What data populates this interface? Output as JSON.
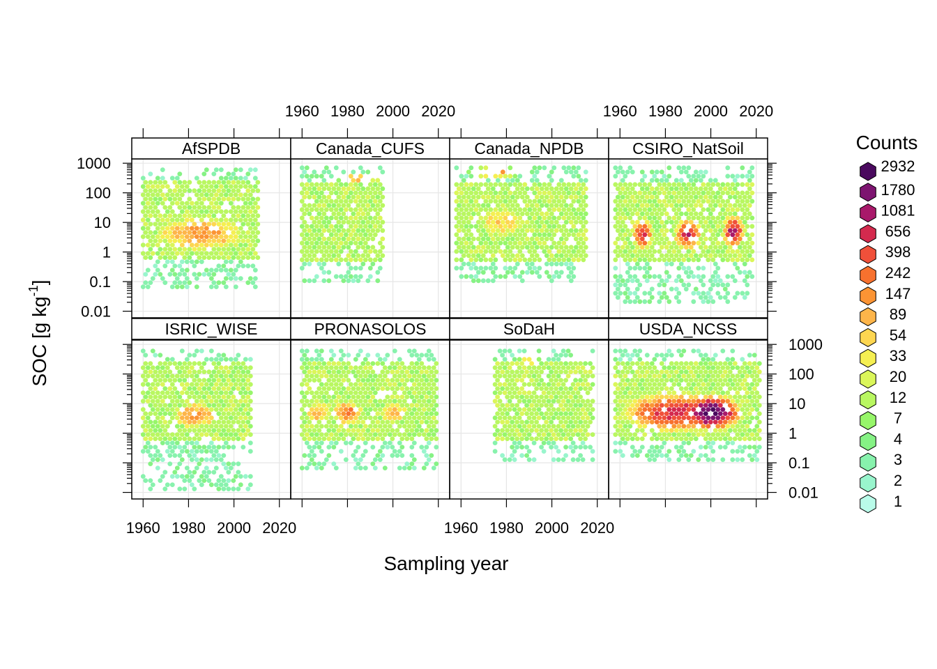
{
  "chart_data": {
    "type": "hexbin",
    "xlabel": "Sampling year",
    "ylabel": "SOC [g kg",
    "ylabel_superscript": "-1",
    "ylabel_close": "]",
    "x_ticks": [
      "1960",
      "1980",
      "2000",
      "2020"
    ],
    "x_range": [
      1955,
      2025
    ],
    "y_scale": "log10",
    "y_ticks": [
      "0.01",
      "0.1",
      "1",
      "10",
      "100",
      "1000"
    ],
    "y_range": [
      0.006,
      1400
    ],
    "legend": {
      "title": "Counts",
      "levels": [
        "2932",
        "1780",
        "1081",
        "656",
        "398",
        "242",
        "147",
        "89",
        "54",
        "33",
        "20",
        "12",
        "7",
        "4",
        "3",
        "2",
        "1"
      ],
      "colors": [
        "#4a0a5e",
        "#7d1470",
        "#a8196a",
        "#d42a4e",
        "#f0503a",
        "#f7712e",
        "#fb9434",
        "#fdb54a",
        "#fdd651",
        "#f5ef52",
        "#dbf65a",
        "#b9f761",
        "#97f66a",
        "#86f285",
        "#88f2ad",
        "#99f5cd",
        "#b9fbe9"
      ]
    },
    "panels": [
      {
        "name": "AfSPDB",
        "years": [
          1960,
          2011
        ],
        "soc_range": [
          0.05,
          600
        ],
        "clusters": [
          {
            "year": 1985,
            "soc": 4,
            "level": 6,
            "sx": 16,
            "sy": 0.45
          }
        ]
      },
      {
        "name": "Canada_CUFS",
        "years": [
          1960,
          1996
        ],
        "soc_range": [
          0.1,
          700
        ],
        "clusters": [
          {
            "year": 1985,
            "soc": 300,
            "level": 7,
            "sx": 8,
            "sy": 0.15
          }
        ]
      },
      {
        "name": "Canada_NPDB",
        "years": [
          1958,
          2016
        ],
        "soc_range": [
          0.1,
          700
        ],
        "clusters": [
          {
            "year": 1978,
            "soc": 10,
            "level": 8,
            "sx": 10,
            "sy": 0.5
          },
          {
            "year": 1975,
            "soc": 500,
            "level": 6,
            "sx": 8,
            "sy": 0.15
          }
        ]
      },
      {
        "name": "CSIRO_NatSoil",
        "years": [
          1958,
          2019
        ],
        "soc_range": [
          0.02,
          700
        ],
        "clusters": [
          {
            "year": 1970,
            "soc": 4,
            "level": 3,
            "sx": 3,
            "sy": 0.35
          },
          {
            "year": 1990,
            "soc": 4,
            "level": 3,
            "sx": 4,
            "sy": 0.35
          },
          {
            "year": 2010,
            "soc": 5,
            "level": 2,
            "sx": 3,
            "sy": 0.35
          }
        ]
      },
      {
        "name": "ISRIC_WISE",
        "years": [
          1960,
          2008
        ],
        "soc_range": [
          0.01,
          600
        ],
        "clusters": [
          {
            "year": 1983,
            "soc": 4,
            "level": 6,
            "sx": 8,
            "sy": 0.35
          }
        ]
      },
      {
        "name": "PRONASOLOS",
        "years": [
          1960,
          2020
        ],
        "soc_range": [
          0.05,
          600
        ],
        "clusters": [
          {
            "year": 1980,
            "soc": 5,
            "level": 5,
            "sx": 5,
            "sy": 0.3
          },
          {
            "year": 1967,
            "soc": 5,
            "level": 7,
            "sx": 5,
            "sy": 0.3
          },
          {
            "year": 2000,
            "soc": 5,
            "level": 7,
            "sx": 6,
            "sy": 0.3
          }
        ]
      },
      {
        "name": "SoDaH",
        "years": [
          1975,
          2019
        ],
        "soc_range": [
          0.1,
          600
        ],
        "clusters": [
          {
            "year": 1990,
            "soc": 300,
            "level": 8,
            "sx": 4,
            "sy": 0.25
          }
        ]
      },
      {
        "name": "USDA_NCSS",
        "years": [
          1958,
          2022
        ],
        "soc_range": [
          0.1,
          600
        ],
        "clusters": [
          {
            "year": 2000,
            "soc": 5,
            "level": 0,
            "sx": 8,
            "sy": 0.35
          },
          {
            "year": 1985,
            "soc": 5,
            "level": 3,
            "sx": 16,
            "sy": 0.45
          }
        ]
      }
    ]
  }
}
